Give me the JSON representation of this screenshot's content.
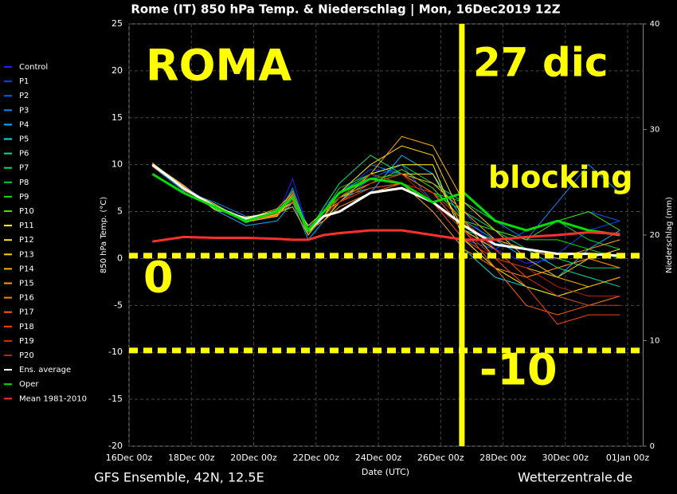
{
  "chart_data": {
    "type": "line",
    "title": "Rome  (IT)  850 hPa Temp. & Niederschlag | Mon, 16Dec2019 12Z",
    "y_label": "850 hPa Temp. (°C)",
    "y2_label": "Niederschlag (mm)",
    "x_label": "Date (UTC)",
    "footer_left": "GFS Ensemble, 42N, 12.5E",
    "footer_right": "Wetterzentrale.de",
    "annotations": [
      "ROMA",
      "27 dic",
      "blocking",
      "0",
      "-10"
    ],
    "annotation_lines": {
      "x": 10.68,
      "y": [
        0.3,
        -9.8
      ],
      "color": "#ffff00"
    },
    "xlim": [
      0,
      16.5
    ],
    "xticks": [
      {
        "value": 0,
        "label": "16Dec 00z"
      },
      {
        "value": 2,
        "label": "18Dec 00z"
      },
      {
        "value": 4,
        "label": "20Dec 00z"
      },
      {
        "value": 6,
        "label": "22Dec 00z"
      },
      {
        "value": 8,
        "label": "24Dec 00z"
      },
      {
        "value": 10,
        "label": "26Dec 00z"
      },
      {
        "value": 12,
        "label": "28Dec 00z"
      },
      {
        "value": 14,
        "label": "30Dec 00z"
      },
      {
        "value": 16,
        "label": "01Jan 00z"
      }
    ],
    "ylim": [
      -20,
      25
    ],
    "yticks": [
      -20,
      -15,
      -10,
      -5,
      0,
      5,
      10,
      15,
      20,
      25
    ],
    "y2lim": [
      0,
      40
    ],
    "y2ticks": [
      0,
      10,
      20,
      30,
      40
    ],
    "grid": true,
    "x": [
      0.75,
      1.75,
      2.75,
      3.75,
      4.75,
      5.25,
      5.75,
      6.25,
      6.75,
      7.75,
      8.75,
      9.75,
      10.75,
      11.75,
      12.75,
      13.75,
      14.75,
      15.75
    ],
    "series": [
      {
        "name": "Control",
        "color": "#2020ff",
        "values": [
          10,
          7.5,
          5.5,
          4,
          4.5,
          8.5,
          3,
          5,
          6,
          8,
          9,
          8,
          5,
          1,
          -0.5,
          0,
          1,
          2
        ]
      },
      {
        "name": "P1",
        "color": "#0040ff",
        "values": [
          10,
          7.8,
          5.5,
          4.2,
          4.8,
          7,
          2.5,
          5.5,
          7,
          9.5,
          9,
          7,
          3,
          0,
          -1,
          0.5,
          3,
          4
        ]
      },
      {
        "name": "P2",
        "color": "#0060ff",
        "values": [
          10.2,
          7.5,
          5.8,
          4,
          5,
          6,
          3.5,
          4,
          6,
          8.5,
          10,
          6,
          2,
          1,
          3,
          4,
          5,
          4
        ]
      },
      {
        "name": "P3",
        "color": "#0088ff",
        "values": [
          9.8,
          7.2,
          6,
          4.5,
          4.5,
          7.5,
          3,
          5,
          7,
          10,
          9,
          8,
          6,
          4,
          2,
          6,
          10,
          7
        ]
      },
      {
        "name": "P4",
        "color": "#00b0ff",
        "values": [
          10,
          7.6,
          5.2,
          3.5,
          4,
          6,
          2,
          4,
          5.5,
          7,
          11,
          9,
          4,
          2,
          0,
          -2,
          1,
          3
        ]
      },
      {
        "name": "P5",
        "color": "#00e0e0",
        "values": [
          10.1,
          7.4,
          5.6,
          4.2,
          5,
          5.5,
          2.5,
          5,
          6.5,
          7.5,
          8,
          5,
          1,
          -2,
          -3,
          -4,
          -5,
          -4
        ]
      },
      {
        "name": "P6",
        "color": "#00e0a0",
        "values": [
          9.9,
          7.7,
          5.4,
          4,
          4.6,
          6.8,
          3,
          4.5,
          7,
          9,
          8,
          6,
          3,
          2,
          1,
          -1,
          -2,
          -3
        ]
      },
      {
        "name": "P7",
        "color": "#00e070",
        "values": [
          10,
          7.5,
          5.5,
          4.1,
          4.8,
          7.2,
          2.8,
          5.5,
          8,
          11,
          9,
          7,
          5,
          3,
          1,
          0,
          -1,
          -1
        ]
      },
      {
        "name": "P8",
        "color": "#00d040",
        "values": [
          10,
          7.3,
          5.7,
          3.8,
          5.2,
          6.5,
          3.2,
          5,
          7.5,
          9,
          10,
          8,
          6,
          4,
          3,
          4,
          2,
          1
        ]
      },
      {
        "name": "P9",
        "color": "#10e010",
        "values": [
          10.2,
          7.6,
          5.3,
          4.3,
          4.9,
          6,
          3,
          5,
          6.5,
          8.5,
          9,
          7,
          6,
          3,
          2,
          2,
          1,
          0
        ]
      },
      {
        "name": "P10",
        "color": "#40e000",
        "values": [
          9.8,
          7.5,
          5.5,
          4,
          5,
          6.5,
          2.5,
          4.5,
          6.5,
          8,
          9.5,
          7.5,
          4,
          3,
          2,
          4,
          5,
          3
        ]
      },
      {
        "name": "P11",
        "color": "#ffff00",
        "values": [
          10,
          7.5,
          5.6,
          4,
          4.7,
          7,
          3,
          4,
          6,
          9,
          10,
          10,
          2,
          -1,
          -3,
          -4,
          -3,
          -2
        ]
      },
      {
        "name": "P12",
        "color": "#ffe040",
        "values": [
          10.1,
          7.8,
          5.2,
          4.4,
          5,
          6,
          3.5,
          5,
          6,
          8,
          9,
          9,
          3,
          1,
          -2,
          -1,
          0,
          1
        ]
      },
      {
        "name": "P13",
        "color": "#ffd000",
        "values": [
          10,
          7.4,
          5.8,
          3.9,
          4.5,
          6.5,
          2.8,
          4.5,
          7,
          10,
          12,
          11,
          4,
          0,
          -1,
          -2,
          0,
          -1
        ]
      },
      {
        "name": "P14",
        "color": "#ffb000",
        "values": [
          9.9,
          7.6,
          5.5,
          4.2,
          5.3,
          7,
          3,
          5,
          6,
          9,
          13,
          12,
          6,
          3,
          0,
          -2,
          -3,
          -2
        ]
      },
      {
        "name": "P15",
        "color": "#ffa000",
        "values": [
          10,
          7.5,
          5.4,
          4,
          4.8,
          5.5,
          2.5,
          5,
          6.5,
          8,
          9,
          8,
          5,
          2,
          1,
          0,
          1,
          2
        ]
      },
      {
        "name": "P16",
        "color": "#ff8000",
        "values": [
          10.2,
          7.3,
          5.6,
          4.1,
          5,
          6.8,
          3,
          4,
          5.5,
          7,
          8,
          5,
          1,
          -1,
          -2,
          -1,
          0,
          -1
        ]
      },
      {
        "name": "P17",
        "color": "#ff6000",
        "values": [
          10,
          7.7,
          5.5,
          4,
          4.6,
          6,
          3.2,
          5,
          6,
          8,
          9,
          7,
          3,
          -1,
          -5,
          -6,
          -5,
          -4
        ]
      },
      {
        "name": "P18",
        "color": "#ff4000",
        "values": [
          9.8,
          7.5,
          5.5,
          4.3,
          5,
          6.5,
          3,
          4.5,
          6,
          7.5,
          8,
          6,
          2,
          0,
          -3,
          -7,
          -6,
          -6
        ]
      },
      {
        "name": "P19",
        "color": "#e03000",
        "values": [
          10,
          7.4,
          5.6,
          4,
          4.8,
          7,
          2.8,
          5,
          6.5,
          9,
          8,
          7,
          4,
          1,
          -2,
          -4,
          -5,
          -5
        ]
      },
      {
        "name": "P20",
        "color": "#c02000",
        "values": [
          10.1,
          7.6,
          5.4,
          4.2,
          5,
          6.2,
          3,
          4.5,
          6,
          8,
          9,
          6,
          3,
          0,
          -1,
          -3,
          -4,
          -4
        ]
      },
      {
        "name": "Ens. average",
        "color": "#ffffff",
        "values": [
          10,
          7.5,
          5.5,
          4.2,
          5,
          6.5,
          3,
          4.5,
          5,
          7,
          7.5,
          6,
          3.5,
          1.5,
          1,
          0.5,
          0.5,
          0.3
        ]
      },
      {
        "name": "Oper",
        "color": "#00dd00",
        "values": [
          9,
          7,
          5.5,
          4,
          5,
          6.5,
          3,
          5,
          7,
          8.5,
          8,
          6,
          7,
          4,
          3,
          4,
          3,
          2.5
        ]
      },
      {
        "name": "Mean 1981-2010",
        "color": "#ff3030",
        "values": [
          1.8,
          2.3,
          2.2,
          2.2,
          2.1,
          2.0,
          2.0,
          2.5,
          2.7,
          3,
          3,
          2.5,
          2,
          2,
          2.3,
          2.5,
          2.8,
          2.6
        ]
      }
    ]
  }
}
